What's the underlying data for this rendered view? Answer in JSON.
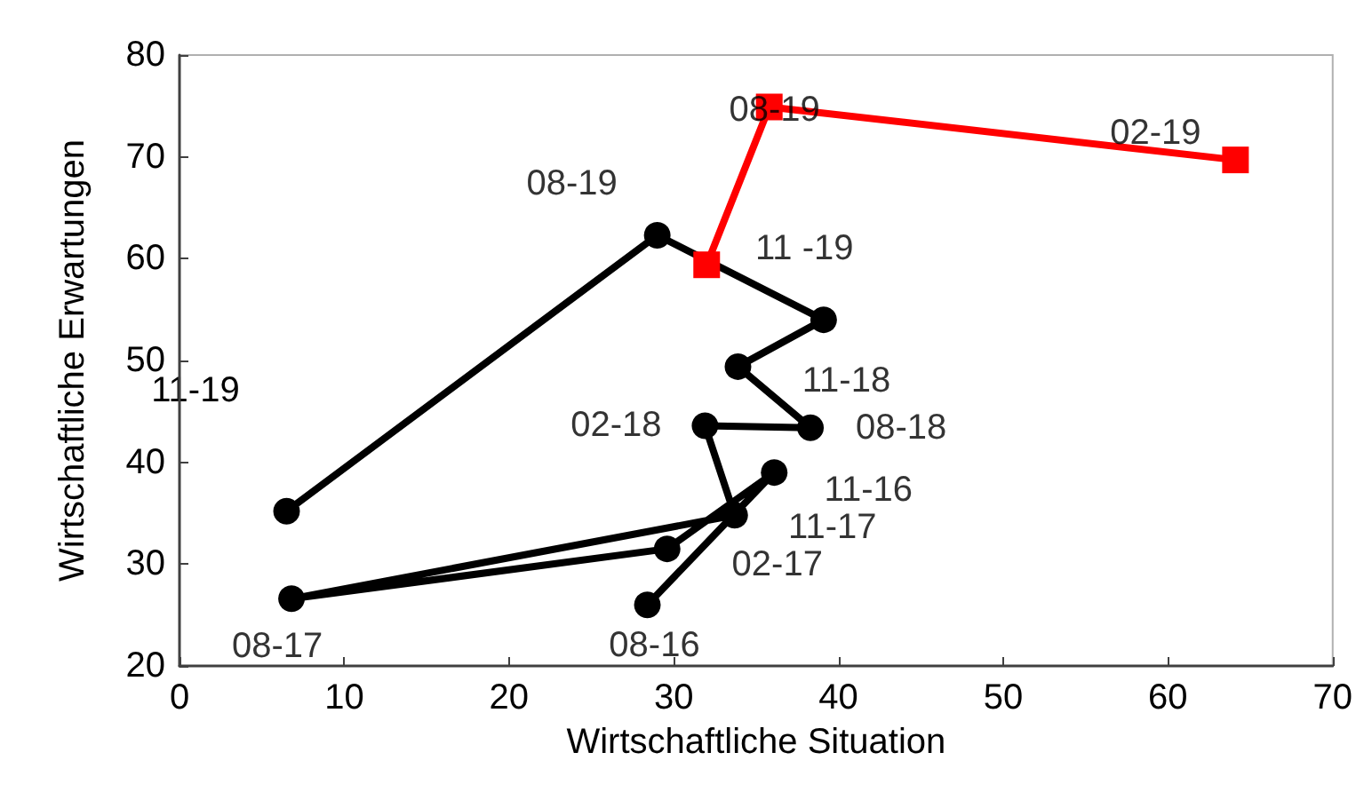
{
  "chart_data": {
    "type": "line",
    "xlabel": "Wirtschaftliche Situation",
    "ylabel": "Wirtschaftliche Erwartungen",
    "xlim": [
      0,
      70
    ],
    "xticks": [
      0,
      10,
      20,
      30,
      40,
      50,
      60,
      70
    ],
    "ylim": [
      20,
      80
    ],
    "yticks": [
      20,
      30,
      40,
      50,
      60,
      70,
      80
    ],
    "grid": false,
    "line_style": "solid",
    "series": [
      {
        "color": "#000000",
        "marker": "circle",
        "x": [
          28.4,
          36.1,
          29.6,
          6.8,
          33.7,
          31.9,
          38.3,
          33.9,
          39.1,
          32.0,
          29.0,
          6.5
        ],
        "values": [
          26,
          39,
          31.5,
          26.6,
          34.8,
          43.6,
          43.4,
          49.4,
          54,
          null,
          62.3,
          35.2
        ]
      },
      {
        "color": "#ff0000",
        "marker": "square",
        "x": [
          32.0,
          35.8,
          64.1
        ],
        "values": [
          59.4,
          74.9,
          69.7
        ]
      }
    ],
    "annotations": [
      {
        "text": "08-16",
        "x": 28.4,
        "y": 26
      },
      {
        "text": "11-16",
        "x": 36.1,
        "y": 39
      },
      {
        "text": "11-17",
        "x": 33.7,
        "y": 34.8
      },
      {
        "text": "02-17",
        "x": 29.6,
        "y": 31.5
      },
      {
        "text": "08-17",
        "x": 6.8,
        "y": 26.6
      },
      {
        "text": "02-18",
        "x": 31.9,
        "y": 43.6
      },
      {
        "text": "08-18",
        "x": 38.3,
        "y": 43.4
      },
      {
        "text": "11-18",
        "x": 33.9,
        "y": 49.4
      },
      "11-19",
      {
        "text": "08-19",
        "x": 29.0,
        "y": 62.3
      },
      {
        "text": "11 -19",
        "x": 32.0,
        "y": 59.4
      },
      {
        "text": "08-19",
        "x": 35.8,
        "y": 74.9
      },
      {
        "text": "02-19",
        "x": 64.1,
        "y": 69.7
      }
    ]
  }
}
